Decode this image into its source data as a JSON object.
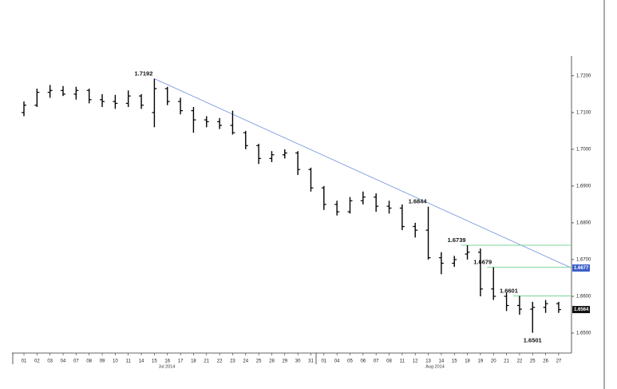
{
  "chart_data": {
    "type": "ohlc",
    "color": "#000000",
    "categories": [
      "01",
      "02",
      "03",
      "04",
      "07",
      "08",
      "09",
      "10",
      "11",
      "14",
      "15",
      "16",
      "17",
      "18",
      "21",
      "22",
      "23",
      "24",
      "25",
      "28",
      "29",
      "30",
      "31",
      "01",
      "04",
      "05",
      "06",
      "07",
      "08",
      "11",
      "12",
      "13",
      "14",
      "15",
      "18",
      "19",
      "20",
      "21",
      "22",
      "25",
      "26",
      "27"
    ],
    "months": [
      "Jul 2014",
      "Aug 2014"
    ],
    "open": [
      1.71,
      1.712,
      1.7155,
      1.716,
      1.715,
      1.716,
      1.7135,
      1.713,
      1.7125,
      1.7145,
      1.71,
      1.7165,
      1.713,
      1.7105,
      1.708,
      1.7075,
      1.7065,
      1.7045,
      1.701,
      1.6975,
      1.6985,
      1.699,
      1.6945,
      1.6895,
      1.685,
      1.683,
      1.686,
      1.687,
      1.6845,
      1.684,
      1.679,
      1.678,
      1.6705,
      1.669,
      1.6715,
      1.672,
      1.662,
      1.66,
      1.6575,
      1.6565,
      1.657,
      1.658
    ],
    "high": [
      1.713,
      1.7165,
      1.7175,
      1.7172,
      1.717,
      1.7165,
      1.715,
      1.7148,
      1.716,
      1.715,
      1.7192,
      1.717,
      1.714,
      1.7115,
      1.709,
      1.7085,
      1.7105,
      1.705,
      1.7015,
      1.6995,
      1.7,
      1.6995,
      1.695,
      1.69,
      1.686,
      1.687,
      1.6885,
      1.688,
      1.686,
      1.685,
      1.68,
      1.6844,
      1.672,
      1.671,
      1.6739,
      1.673,
      1.6679,
      1.661,
      1.6601,
      1.6585,
      1.659,
      1.6585
    ],
    "low": [
      1.709,
      1.7115,
      1.714,
      1.7145,
      1.7135,
      1.7125,
      1.7115,
      1.711,
      1.7115,
      1.711,
      1.706,
      1.712,
      1.7095,
      1.7045,
      1.706,
      1.7055,
      1.704,
      1.7,
      1.696,
      1.6965,
      1.6975,
      1.693,
      1.6885,
      1.6835,
      1.682,
      1.6825,
      1.685,
      1.683,
      1.6825,
      1.678,
      1.676,
      1.67,
      1.666,
      1.668,
      1.67,
      1.66,
      1.659,
      1.656,
      1.655,
      1.6501,
      1.6555,
      1.6555
    ],
    "close": [
      1.712,
      1.7155,
      1.716,
      1.715,
      1.716,
      1.7135,
      1.713,
      1.7125,
      1.7145,
      1.712,
      1.7165,
      1.713,
      1.7105,
      1.708,
      1.7075,
      1.7065,
      1.7045,
      1.701,
      1.6975,
      1.6985,
      1.699,
      1.6945,
      1.6895,
      1.685,
      1.683,
      1.686,
      1.687,
      1.6845,
      1.684,
      1.679,
      1.678,
      1.6705,
      1.669,
      1.67,
      1.672,
      1.662,
      1.66,
      1.6575,
      1.6565,
      1.657,
      1.658,
      1.6564
    ],
    "annotations": [
      1.7192,
      1.6844,
      1.6739,
      1.6679,
      1.6601,
      1.6501
    ],
    "levels": [
      1.6739,
      1.6679,
      1.6601
    ],
    "level_color": "#79d49a",
    "trendline": {
      "start": 1.7192,
      "end": 1.6677,
      "color": "#6f8fdc"
    },
    "last_value": 1.6564,
    "ylim": [
      1.645,
      1.7254
    ],
    "yticks": [
      {
        "value": 1.72,
        "label": "1.7200"
      },
      {
        "value": 1.71,
        "label": "1.7100"
      },
      {
        "value": 1.7,
        "label": "1.7000"
      },
      {
        "value": 1.69,
        "label": "1.6900"
      },
      {
        "value": 1.68,
        "label": "1.6800"
      },
      {
        "value": 1.67,
        "label": "1.6700"
      },
      {
        "value": 1.66,
        "label": "1.6600"
      },
      {
        "value": 1.65,
        "label": "1.6500"
      }
    ],
    "grid": false
  }
}
